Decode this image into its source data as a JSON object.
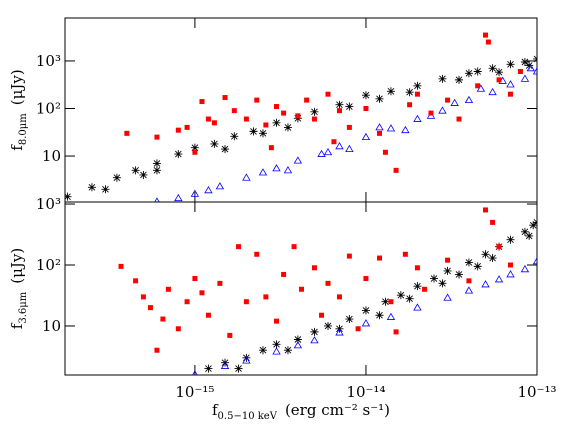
{
  "chart_data": [
    {
      "type": "scatter",
      "log_x": true,
      "log_y": true,
      "show_xtick_labels": false,
      "ylabel": "f",
      "ylabel_sub": "8.0μm",
      "ylabel_unit": "(μJy)",
      "xlim": [
        1.74e-16,
        1e-13
      ],
      "ylim": [
        1.08,
        8000
      ],
      "xticks": [
        1e-15,
        1e-14,
        1e-13
      ],
      "yticks": [
        10,
        {
          "value": 100,
          "label": "10²"
        },
        {
          "value": 1000,
          "label": "10³"
        }
      ],
      "series": [
        {
          "marker": "asterisk",
          "color": "#000000",
          "x": [
            1.8e-16,
            2.5e-16,
            3.5e-16,
            4.5e-16,
            6e-16,
            8e-16,
            1e-15,
            1.3e-15,
            1.7e-15,
            2.2e-15,
            3e-15,
            4e-15,
            5e-15,
            7e-15,
            1e-14,
            1.4e-14,
            2e-14,
            2.8e-14,
            4e-14,
            5.5e-14,
            7e-14,
            8.5e-14,
            1e-13,
            3e-16,
            6e-16,
            1.5e-15,
            3.5e-15,
            8e-15,
            1.8e-14,
            3.5e-14,
            6e-14,
            9e-14,
            5e-16,
            2.5e-15,
            1.2e-14,
            4.5e-14
          ],
          "values": [
            1.4,
            2.2,
            3.5,
            5,
            7,
            11,
            15,
            18,
            26,
            33,
            50,
            62,
            85,
            120,
            190,
            230,
            300,
            420,
            550,
            700,
            850,
            950,
            1100,
            2,
            5,
            14,
            40,
            110,
            220,
            400,
            580,
            800,
            4,
            30,
            160,
            600
          ]
        },
        {
          "marker": "triangle",
          "color": "#0000ff",
          "x": [
            6e-16,
            8e-16,
            1e-15,
            1.4e-15,
            2e-15,
            3e-15,
            4e-15,
            5.5e-15,
            7e-15,
            1e-14,
            1.4e-14,
            2e-14,
            2.8e-14,
            4e-14,
            5.5e-14,
            7e-14,
            8.5e-14,
            1e-13,
            1.2e-15,
            2.5e-15,
            6e-15,
            1.2e-14,
            2.4e-14,
            3.3e-14,
            4.7e-14,
            6.3e-14,
            9.2e-14,
            1.7e-14,
            8e-15,
            3.5e-15
          ],
          "values": [
            1.1,
            1.3,
            1.6,
            2.3,
            3.5,
            5.5,
            8,
            11,
            16,
            25,
            38,
            60,
            90,
            150,
            220,
            320,
            420,
            600,
            1.9,
            4.5,
            12,
            40,
            70,
            130,
            260,
            380,
            700,
            35,
            14,
            5
          ]
        },
        {
          "marker": "square",
          "color": "#ff0000",
          "x": [
            4e-16,
            6e-16,
            8e-16,
            9e-16,
            1.1e-15,
            1.2e-15,
            1.3e-15,
            1.5e-15,
            1.7e-15,
            2e-15,
            2.3e-15,
            2.6e-15,
            3e-15,
            3.3e-15,
            4e-15,
            4.5e-15,
            5e-15,
            6e-15,
            7e-15,
            8e-15,
            1e-14,
            1.2e-14,
            1.5e-14,
            2e-14,
            2.4e-14,
            3e-14,
            3.5e-14,
            4.5e-14,
            5e-14,
            5.2e-14,
            6e-14,
            7e-14,
            8e-14,
            2.8e-15,
            1e-15,
            1.3e-14,
            6.5e-15,
            1.8e-14
          ],
          "values": [
            30,
            25,
            35,
            40,
            140,
            60,
            50,
            170,
            90,
            60,
            150,
            45,
            110,
            80,
            70,
            150,
            60,
            200,
            90,
            40,
            100,
            30,
            5,
            200,
            80,
            150,
            60,
            300,
            3500,
            2500,
            400,
            200,
            600,
            15,
            12,
            12,
            20,
            120
          ]
        }
      ]
    },
    {
      "type": "scatter",
      "log_x": true,
      "log_y": true,
      "show_xtick_labels": true,
      "ylabel": "f",
      "ylabel_sub": "3.6μm",
      "ylabel_unit": "(μJy)",
      "xlabel": "f",
      "xlabel_sub": "0.5−10 keV",
      "xlabel_unit": "(erg cm⁻² s⁻¹)",
      "xlim": [
        1.74e-16,
        1e-13
      ],
      "ylim": [
        1.57,
        1080
      ],
      "xticks": [
        {
          "value": 1e-15,
          "label": "10⁻¹⁵"
        },
        {
          "value": 1e-14,
          "label": "10⁻¹⁴"
        },
        {
          "value": 1e-13,
          "label": "10⁻¹³"
        }
      ],
      "yticks": [
        10,
        {
          "value": 100,
          "label": "10²"
        },
        {
          "value": 1000,
          "label": "10³"
        }
      ],
      "series": [
        {
          "marker": "asterisk",
          "color": "#000000",
          "x": [
            1.2e-15,
            1.5e-15,
            2e-15,
            2.5e-15,
            3e-15,
            4e-15,
            5e-15,
            6e-15,
            8e-15,
            1e-14,
            1.3e-14,
            1.6e-14,
            2e-14,
            2.5e-14,
            3e-14,
            4e-14,
            5e-14,
            6e-14,
            7e-14,
            8.5e-14,
            1e-13,
            1.8e-15,
            3.5e-15,
            7e-15,
            1.2e-14,
            1.8e-14,
            2.8e-14,
            3.5e-14,
            4.5e-14,
            5.5e-14,
            9e-14,
            9.5e-14
          ],
          "values": [
            2,
            2.5,
            3,
            4,
            5,
            6,
            8,
            10,
            13,
            18,
            25,
            32,
            45,
            60,
            80,
            110,
            150,
            200,
            260,
            350,
            500,
            2,
            4,
            9,
            15,
            28,
            50,
            70,
            95,
            130,
            300,
            450
          ]
        },
        {
          "marker": "triangle",
          "color": "#0000ff",
          "x": [
            1e-15,
            1.5e-15,
            2e-15,
            3e-15,
            4e-15,
            5e-15,
            7e-15,
            1e-14,
            1.4e-14,
            2e-14,
            3e-14,
            4e-14,
            5e-14,
            6e-14,
            7e-14,
            8.5e-14,
            1e-13
          ],
          "values": [
            1.6,
            2.2,
            2.7,
            3.8,
            4.8,
            5.8,
            7.8,
            11,
            14,
            20,
            29,
            38,
            48,
            58,
            70,
            85,
            115
          ]
        },
        {
          "marker": "square",
          "color": "#ff0000",
          "x": [
            3.7e-16,
            4.5e-16,
            5e-16,
            5.5e-16,
            6e-16,
            6.5e-16,
            7e-16,
            8e-16,
            9e-16,
            1e-15,
            1.1e-15,
            1.2e-15,
            1.4e-15,
            1.6e-15,
            1.8e-15,
            2e-15,
            2.3e-15,
            2.6e-15,
            3e-15,
            3.3e-15,
            3.8e-15,
            4.2e-15,
            5e-15,
            5.5e-15,
            6e-15,
            7e-15,
            8e-15,
            9e-15,
            1e-14,
            1.2e-14,
            1.4e-14,
            1.5e-14,
            1.7e-14,
            2e-14,
            2.2e-14,
            3e-14,
            4e-14,
            5e-14,
            5.5e-14,
            6e-14,
            7e-14
          ],
          "values": [
            95,
            55,
            30,
            20,
            4,
            13,
            40,
            9,
            25,
            60,
            35,
            15,
            50,
            7,
            200,
            25,
            150,
            30,
            12,
            70,
            200,
            40,
            90,
            15,
            50,
            30,
            140,
            9,
            60,
            130,
            25,
            8,
            150,
            90,
            40,
            120,
            55,
            800,
            500,
            200,
            100
          ]
        }
      ]
    }
  ]
}
